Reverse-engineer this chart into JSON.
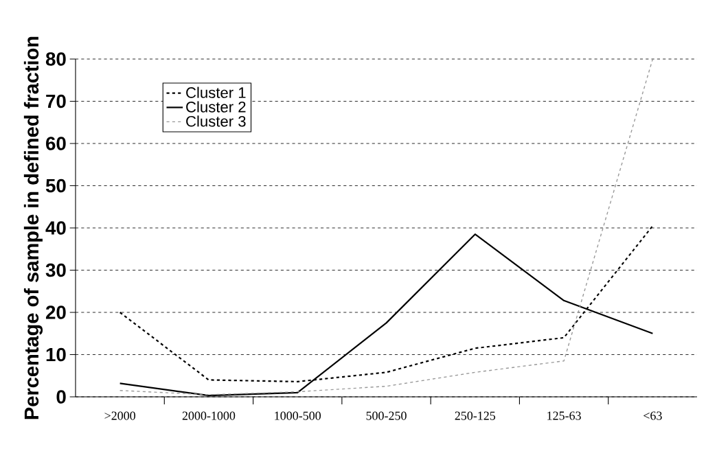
{
  "chart_data": {
    "type": "line",
    "ylabel": "Percentage of sample in defined fraction",
    "categories": [
      ">2000",
      "2000-1000",
      "1000-500",
      "500-250",
      "250-125",
      "125-63",
      "<63"
    ],
    "series": [
      {
        "name": "Cluster 1",
        "color": "#000000",
        "line_style": "dashed",
        "values": [
          20,
          4,
          3.6,
          5.8,
          11.5,
          14,
          40.5
        ]
      },
      {
        "name": "Cluster 2",
        "color": "#000000",
        "line_style": "solid",
        "values": [
          3.2,
          0.3,
          1,
          17.5,
          38.5,
          22.8,
          15
        ]
      },
      {
        "name": "Cluster 3",
        "color": "#999999",
        "line_style": "dashed",
        "values": [
          1.5,
          0.5,
          1.2,
          2.5,
          5.8,
          8.5,
          80
        ]
      }
    ],
    "ylim": [
      0,
      80
    ],
    "yticks": [
      0,
      10,
      20,
      30,
      40,
      50,
      60,
      70,
      80
    ],
    "grid": "y",
    "legend": "top left",
    "marker": "none"
  }
}
